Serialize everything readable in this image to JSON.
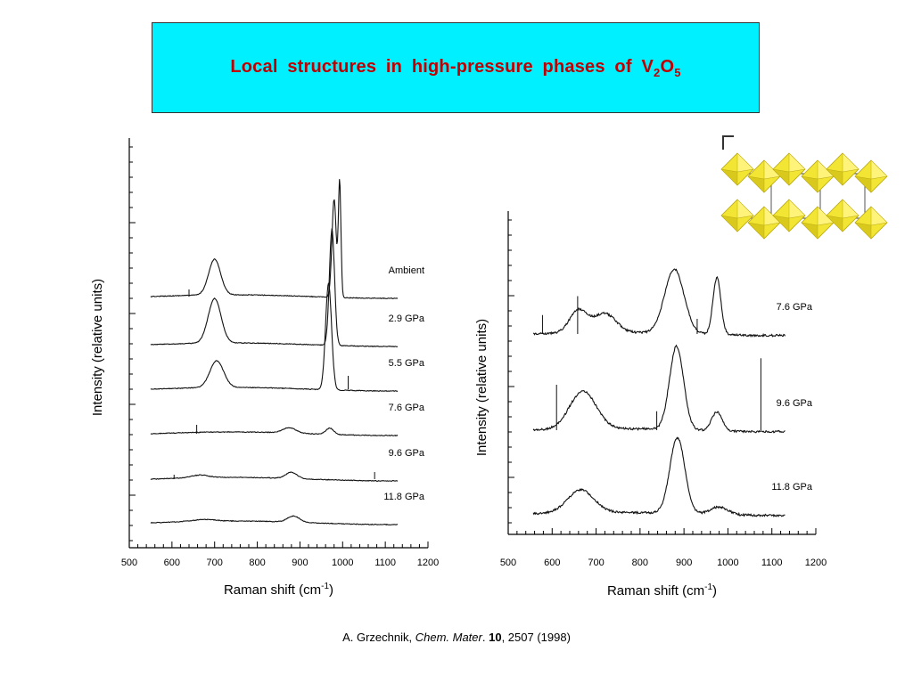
{
  "title": {
    "main": "Local  structures  in  high-pressure  phases  of  V",
    "sub1": "2",
    "mid": "O",
    "sub2": "5"
  },
  "colors": {
    "title_bg": "#00f0ff",
    "title_text": "#c00000",
    "crystal": "#f2e534"
  },
  "citation": {
    "author": "A. Grzechnik, ",
    "journal": "Chem. Mater",
    "dot": ". ",
    "volume": "10",
    "rest": ", 2507 (1998)"
  },
  "chart_data": [
    {
      "type": "line",
      "xlabel": "Raman  shift  (cm",
      "xlabel_sup": "-1",
      "xlabel_end": ")",
      "ylabel": "Intensity  (relative  units)",
      "xlim": [
        500,
        1200
      ],
      "xticks": [
        500,
        600,
        700,
        800,
        900,
        1000,
        1100,
        1200
      ],
      "series": [
        {
          "name": "Ambient",
          "peaks": [
            [
              700,
              0.4,
              14
            ],
            [
              980,
              1.1,
              5
            ],
            [
              993,
              1.3,
              3
            ]
          ],
          "spikes": [
            [
              640,
              0.08
            ]
          ],
          "offset": 0
        },
        {
          "name": "2.9 GPa",
          "peaks": [
            [
              700,
              0.5,
              15
            ],
            [
              975,
              1.3,
              6
            ]
          ],
          "spikes": [],
          "offset": 1
        },
        {
          "name": "5.5 GPa",
          "peaks": [
            [
              705,
              0.3,
              16
            ],
            [
              967,
              1.2,
              7
            ]
          ],
          "spikes": [
            [
              1013,
              0.15
            ]
          ],
          "offset": 2
        },
        {
          "name": "7.6 GPa",
          "peaks": [
            [
              875,
              0.06,
              15
            ],
            [
              970,
              0.07,
              9
            ]
          ],
          "spikes": [
            [
              658,
              0.1
            ]
          ],
          "offset": 3
        },
        {
          "name": "9.6 GPa",
          "peaks": [
            [
              665,
              0.03,
              20
            ],
            [
              880,
              0.07,
              13
            ]
          ],
          "spikes": [
            [
              605,
              0.05
            ],
            [
              1075,
              0.08
            ]
          ],
          "offset": 4
        },
        {
          "name": "11.8 GPa",
          "peaks": [
            [
              675,
              0.02,
              25
            ],
            [
              885,
              0.07,
              14
            ]
          ],
          "spikes": [],
          "offset": 5
        }
      ]
    },
    {
      "type": "line",
      "xlabel": "Raman  shift  (cm",
      "xlabel_sup": "-1",
      "xlabel_end": ")",
      "ylabel": "Intensity  (relative  units)",
      "xlim": [
        500,
        1200
      ],
      "xticks": [
        500,
        600,
        700,
        800,
        900,
        1000,
        1100,
        1200
      ],
      "series": [
        {
          "name": "7.6 GPa",
          "peaks": [
            [
              660,
              0.3,
              20
            ],
            [
              720,
              0.25,
              25
            ],
            [
              878,
              0.85,
              22
            ],
            [
              975,
              0.75,
              9
            ]
          ],
          "spikes": [
            [
              578,
              0.25
            ],
            [
              658,
              0.5
            ],
            [
              930,
              0.2
            ]
          ],
          "offset": 0
        },
        {
          "name": "9.6 GPa",
          "peaks": [
            [
              670,
              0.5,
              30
            ],
            [
              883,
              1.1,
              16
            ],
            [
              975,
              0.25,
              12
            ]
          ],
          "spikes": [
            [
              610,
              0.6
            ],
            [
              838,
              0.25
            ],
            [
              1075,
              0.95
            ]
          ],
          "offset": 1
        },
        {
          "name": "11.8 GPa",
          "peaks": [
            [
              665,
              0.3,
              30
            ],
            [
              885,
              1.0,
              17
            ],
            [
              980,
              0.1,
              20
            ]
          ],
          "spikes": [],
          "offset": 2
        }
      ]
    }
  ]
}
